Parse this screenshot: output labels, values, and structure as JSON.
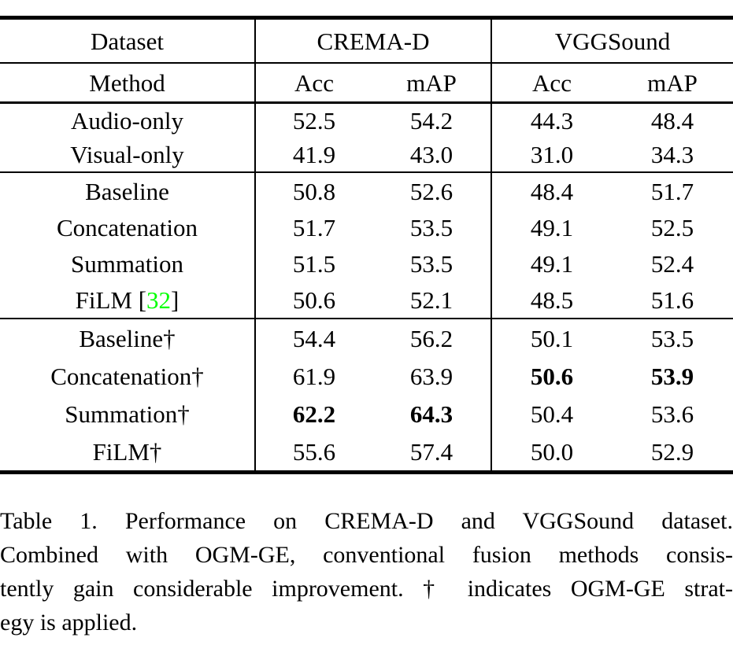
{
  "colors": {
    "citation_green": "#00FF00",
    "text": "#000000",
    "background": "#FFFFFF"
  },
  "table": {
    "header_row1": {
      "dataset": "Dataset",
      "group1": "CREMA-D",
      "group2": "VGGSound"
    },
    "header_row2": {
      "method": "Method",
      "c1": "Acc",
      "c2": "mAP",
      "c3": "Acc",
      "c4": "mAP"
    },
    "groups": [
      {
        "rows": [
          {
            "method": "Audio-only",
            "values": [
              "52.5",
              "54.2",
              "44.3",
              "48.4"
            ]
          },
          {
            "method": "Visual-only",
            "values": [
              "41.9",
              "43.0",
              "31.0",
              "34.3"
            ]
          }
        ]
      },
      {
        "rows": [
          {
            "method": "Baseline",
            "values": [
              "50.8",
              "52.6",
              "48.4",
              "51.7"
            ]
          },
          {
            "method": "Concatenation",
            "values": [
              "51.7",
              "53.5",
              "49.1",
              "52.5"
            ]
          },
          {
            "method": "Summation",
            "values": [
              "51.5",
              "53.5",
              "49.1",
              "52.4"
            ]
          },
          {
            "method_prefix": "FiLM [",
            "citation": "32",
            "method_suffix": "]",
            "values": [
              "50.6",
              "52.1",
              "48.5",
              "51.6"
            ]
          }
        ]
      },
      {
        "rows": [
          {
            "method": "Baseline†",
            "values": [
              "54.4",
              "56.2",
              "50.1",
              "53.5"
            ]
          },
          {
            "method": "Concatenation†",
            "values": [
              "61.9",
              "63.9",
              "50.6",
              "53.9"
            ]
          },
          {
            "method": "Summation†",
            "values": [
              "62.2",
              "64.3",
              "50.4",
              "53.6"
            ]
          },
          {
            "method": "FiLM†",
            "values": [
              "55.6",
              "57.4",
              "50.0",
              "52.9"
            ]
          }
        ]
      }
    ]
  },
  "caption": {
    "lines": [
      "Table 1.  Performance on CREMA-D and VGGSound dataset.",
      "Combined with OGM-GE, conventional fusion methods consis-",
      "tently gain considerable improvement. † indicates OGM-GE strat-",
      "egy is applied."
    ]
  }
}
